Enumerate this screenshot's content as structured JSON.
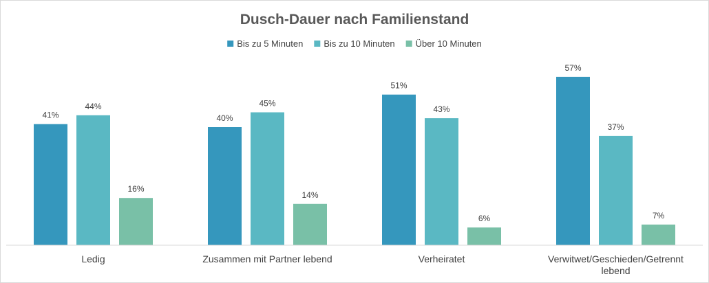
{
  "chart_data": {
    "type": "bar",
    "title": "Dusch-Dauer nach Familienstand",
    "categories": [
      [
        "Ledig"
      ],
      [
        "Zusammen mit Partner lebend"
      ],
      [
        "Verheiratet"
      ],
      [
        "Verwitwet/Geschieden/Getrennt",
        "lebend"
      ]
    ],
    "series": [
      {
        "name": "Bis zu 5 Minuten",
        "color": "#3597bd",
        "values": [
          41,
          40,
          51,
          57
        ],
        "labels": [
          "41%",
          "40%",
          "51%",
          "57%"
        ]
      },
      {
        "name": "Bis zu 10 Minuten",
        "color": "#5ab8c3",
        "values": [
          44,
          45,
          43,
          37
        ],
        "labels": [
          "44%",
          "45%",
          "43%",
          "37%"
        ]
      },
      {
        "name": "Über 10 Minuten",
        "color": "#79c0a7",
        "values": [
          16,
          14,
          6,
          7
        ],
        "labels": [
          "16%",
          "14%",
          "6%",
          "7%"
        ]
      }
    ],
    "value_unit": "%",
    "ylim": [
      0,
      60
    ],
    "grid": false,
    "legend_position": "top"
  }
}
